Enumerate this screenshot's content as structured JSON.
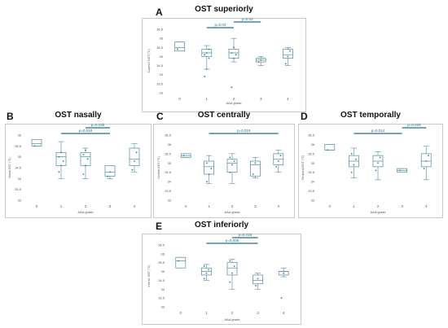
{
  "chart_data": [
    {
      "id": "A",
      "type": "box",
      "title": "OST superiorly",
      "xlabel": "AAA grade",
      "ylabel": "Superior OST (°C)",
      "categories": [
        "0",
        "1",
        "2",
        "3",
        "4"
      ],
      "yticks": [
        "33",
        "33.5",
        "34",
        "34.5",
        "35",
        "35.5",
        "36",
        "36.5"
      ],
      "ylim": [
        33,
        36.5
      ],
      "boxes": [
        {
          "min": 35.3,
          "q1": 35.3,
          "median": 35.5,
          "q3": 35.8,
          "max": 35.8,
          "points": [
            35.4
          ]
        },
        {
          "min": 34.3,
          "q1": 35.0,
          "median": 35.2,
          "q3": 35.4,
          "max": 35.6,
          "points": [
            33.9,
            34.3,
            34.9,
            35.1,
            35.2,
            35.4
          ]
        },
        {
          "min": 34.7,
          "q1": 34.9,
          "median": 35.2,
          "q3": 35.4,
          "max": 36.0,
          "points": [
            33.3,
            34.9,
            35.1,
            35.2,
            35.5
          ]
        },
        {
          "min": 34.5,
          "q1": 34.7,
          "median": 34.8,
          "q3": 34.9,
          "max": 35.0,
          "points": [
            34.7,
            34.8
          ]
        },
        {
          "min": 34.5,
          "q1": 34.9,
          "median": 35.1,
          "q3": 35.4,
          "max": 35.5,
          "points": [
            34.6,
            35.0,
            35.3
          ]
        }
      ],
      "brackets": [
        {
          "from": "1",
          "to": "2",
          "label": "p=0.03"
        },
        {
          "from": "2",
          "to": "3",
          "label": "p=0.03"
        }
      ]
    },
    {
      "id": "B",
      "type": "box",
      "title": "OST nasally",
      "xlabel": "AAA grade",
      "ylabel": "Nasal OST (°C)",
      "categories": [
        "0",
        "1",
        "2",
        "3",
        "4"
      ],
      "yticks": [
        "33",
        "33.5",
        "34",
        "34.5",
        "35",
        "35.5",
        "36"
      ],
      "ylim": [
        33,
        36
      ],
      "boxes": [
        {
          "min": 35.5,
          "q1": 35.5,
          "median": 35.6,
          "q3": 35.8,
          "max": 35.8,
          "points": [
            35.5
          ]
        },
        {
          "min": 34.0,
          "q1": 34.6,
          "median": 35.0,
          "q3": 35.2,
          "max": 35.7,
          "points": [
            34.3,
            34.6,
            34.8,
            35.0,
            35.2
          ]
        },
        {
          "min": 34.0,
          "q1": 34.6,
          "median": 35.0,
          "q3": 35.2,
          "max": 35.4,
          "points": [
            34.2,
            34.6,
            34.9,
            35.1,
            35.3
          ]
        },
        {
          "min": 34.0,
          "q1": 34.1,
          "median": 34.3,
          "q3": 34.6,
          "max": 34.6,
          "points": [
            34.1,
            34.3
          ]
        },
        {
          "min": 34.3,
          "q1": 34.6,
          "median": 34.9,
          "q3": 35.4,
          "max": 35.6,
          "points": [
            34.4,
            34.8,
            35.2
          ]
        }
      ],
      "brackets": [
        {
          "from": "1",
          "to": "3",
          "label": "p=0.018"
        },
        {
          "from": "2",
          "to": "3",
          "label": "p=0.036"
        }
      ]
    },
    {
      "id": "C",
      "type": "box",
      "title": "OST centrally",
      "xlabel": "AAA grade",
      "ylabel": "Central OST (°C)",
      "categories": [
        "0",
        "1",
        "2",
        "3",
        "4"
      ],
      "yticks": [
        "33",
        "33.5",
        "34",
        "34.5",
        "35",
        "35.5",
        "36",
        "36.5"
      ],
      "ylim": [
        33,
        36.5
      ],
      "boxes": [
        {
          "min": 35.3,
          "q1": 35.3,
          "median": 35.4,
          "q3": 35.5,
          "max": 35.5,
          "points": [
            35.4
          ]
        },
        {
          "min": 33.9,
          "q1": 34.4,
          "median": 34.8,
          "q3": 35.1,
          "max": 35.4,
          "points": [
            34.0,
            34.4,
            34.7,
            35.0
          ]
        },
        {
          "min": 33.9,
          "q1": 34.5,
          "median": 35.0,
          "q3": 35.2,
          "max": 35.5,
          "points": [
            34.5,
            34.9,
            35.1,
            35.3
          ]
        },
        {
          "min": 34.2,
          "q1": 34.3,
          "median": 34.9,
          "q3": 35.1,
          "max": 35.3,
          "points": [
            34.4,
            35.0
          ]
        },
        {
          "min": 34.5,
          "q1": 34.9,
          "median": 35.2,
          "q3": 35.5,
          "max": 35.7,
          "points": [
            34.8,
            35.1,
            35.4
          ]
        }
      ],
      "brackets": [
        {
          "from": "1",
          "to": "4",
          "label": "p=0.019"
        }
      ]
    },
    {
      "id": "D",
      "type": "box",
      "title": "OST temporally",
      "xlabel": "AAA grade",
      "ylabel": "Temporal OST (°C)",
      "categories": [
        "0",
        "1",
        "2",
        "3",
        "4"
      ],
      "yticks": [
        "33",
        "33.5",
        "34",
        "34.5",
        "35",
        "35.5",
        "36",
        "36.5"
      ],
      "ylim": [
        33,
        36.5
      ],
      "boxes": [
        {
          "min": 35.7,
          "q1": 35.7,
          "median": 35.7,
          "q3": 36.0,
          "max": 36.0,
          "points": [
            35.7
          ]
        },
        {
          "min": 34.2,
          "q1": 34.8,
          "median": 35.1,
          "q3": 35.4,
          "max": 35.8,
          "points": [
            34.5,
            34.9,
            35.2,
            35.5
          ]
        },
        {
          "min": 34.1,
          "q1": 34.8,
          "median": 35.1,
          "q3": 35.4,
          "max": 35.6,
          "points": [
            34.6,
            35.0,
            35.3
          ]
        },
        {
          "min": 34.5,
          "q1": 34.5,
          "median": 34.6,
          "q3": 34.7,
          "max": 34.7,
          "points": [
            34.6
          ]
        },
        {
          "min": 34.1,
          "q1": 34.8,
          "median": 35.1,
          "q3": 35.5,
          "max": 35.9,
          "points": [
            34.7,
            35.1,
            35.4
          ]
        }
      ],
      "brackets": [
        {
          "from": "1",
          "to": "3",
          "label": "p=0.014"
        },
        {
          "from": "3",
          "to": "4",
          "label": "p=0.029"
        }
      ]
    },
    {
      "id": "E",
      "type": "box",
      "title": "OST inferiorly",
      "xlabel": "AAA grade",
      "ylabel": "Inferior OST (°C)",
      "categories": [
        "0",
        "1",
        "2",
        "3",
        "4"
      ],
      "yticks": [
        "33",
        "33.5",
        "34",
        "34.5",
        "35",
        "35.5",
        "36",
        "36.5"
      ],
      "ylim": [
        33,
        36.5
      ],
      "boxes": [
        {
          "min": 35.2,
          "q1": 35.2,
          "median": 35.6,
          "q3": 35.8,
          "max": 35.8,
          "points": [
            35.6
          ]
        },
        {
          "min": 34.5,
          "q1": 34.8,
          "median": 35.0,
          "q3": 35.2,
          "max": 35.4,
          "points": [
            34.6,
            34.9,
            35.1,
            35.3
          ]
        },
        {
          "min": 34.0,
          "q1": 34.8,
          "median": 35.2,
          "q3": 35.5,
          "max": 35.7,
          "points": [
            34.4,
            34.9,
            35.3,
            35.6
          ]
        },
        {
          "min": 34.0,
          "q1": 34.3,
          "median": 34.5,
          "q3": 34.8,
          "max": 34.9,
          "points": [
            34.2,
            34.6
          ]
        },
        {
          "min": 34.7,
          "q1": 34.8,
          "median": 35.0,
          "q3": 35.0,
          "max": 35.2,
          "points": [
            33.5,
            34.9
          ]
        }
      ],
      "brackets": [
        {
          "from": "1",
          "to": "3",
          "label": "p=0.005"
        },
        {
          "from": "2",
          "to": "3",
          "label": "p=0.018"
        }
      ]
    }
  ]
}
